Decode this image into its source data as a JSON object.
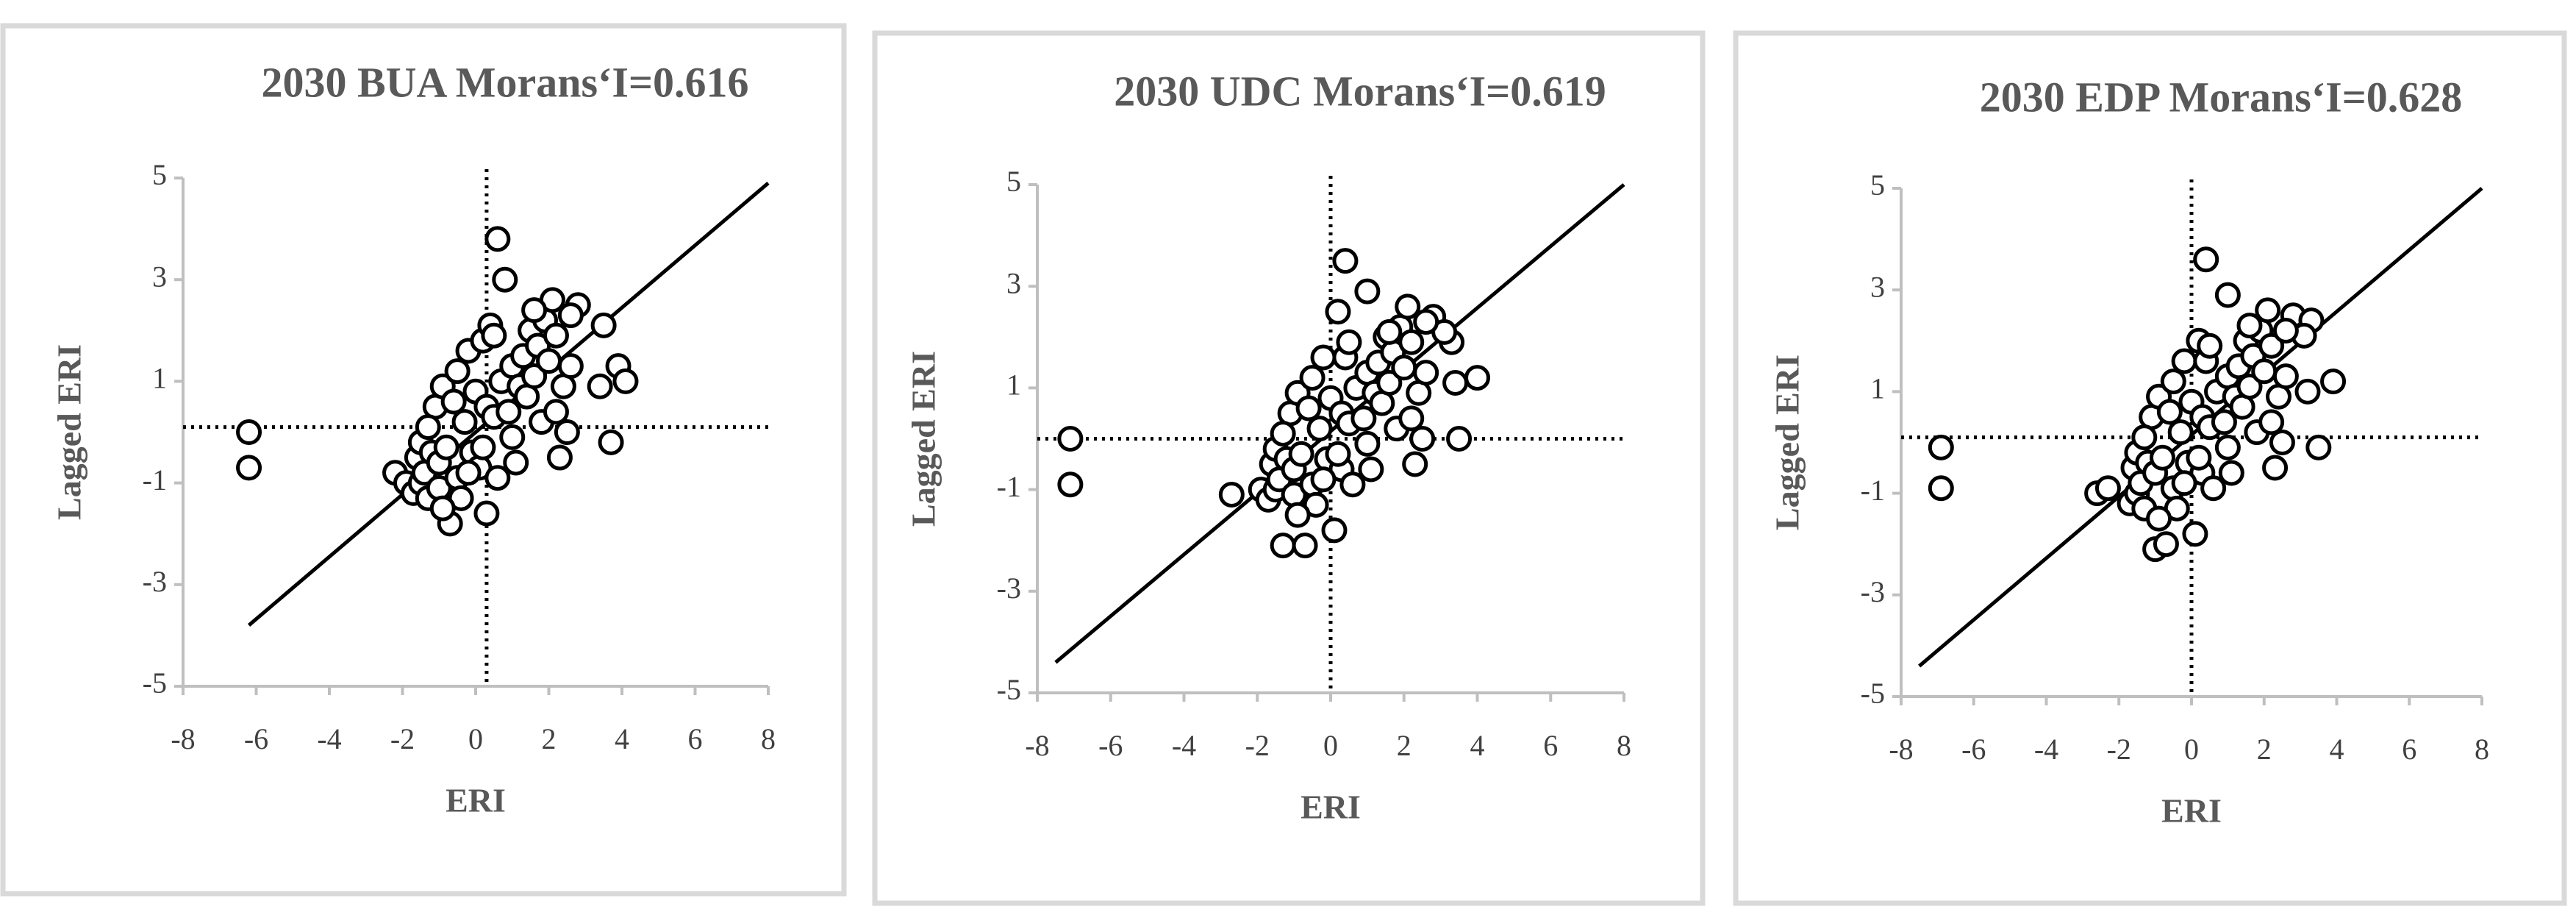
{
  "chart_data": [
    {
      "type": "scatter",
      "title": "2030 BUA  Morans‘I=0.616",
      "x_label": "ERI",
      "y_label": "Lagged ERI",
      "xlim": [
        -8,
        8
      ],
      "xticks": [
        -8,
        -6,
        -4,
        -2,
        0,
        2,
        4,
        6,
        8
      ],
      "ylim": [
        -5,
        5
      ],
      "yticks": [
        -5,
        -3,
        -1,
        1,
        3,
        5
      ],
      "x": [
        -6.2,
        -6.2,
        -2.2,
        -1.9,
        -1.7,
        -1.6,
        -1.5,
        -1.5,
        -1.4,
        -1.3,
        -1.2,
        -1.1,
        -1.0,
        -1.0,
        -0.9,
        -0.8,
        -0.7,
        -0.6,
        -0.5,
        -0.4,
        -0.3,
        -0.2,
        -0.1,
        0.0,
        0.1,
        0.2,
        0.3,
        0.3,
        0.4,
        0.5,
        0.6,
        0.6,
        0.7,
        0.8,
        0.9,
        1.0,
        1.1,
        1.2,
        1.3,
        1.4,
        1.5,
        1.6,
        1.7,
        1.8,
        1.9,
        2.0,
        2.1,
        2.2,
        2.3,
        2.4,
        2.5,
        2.6,
        2.8,
        3.4,
        3.5,
        3.7,
        3.9,
        4.1,
        -0.5,
        0.2,
        -1.3,
        -0.9,
        1.0,
        1.6,
        2.2,
        -0.2,
        0.5,
        2.6
      ],
      "values": [
        0.0,
        -0.7,
        -0.8,
        -1.0,
        -1.2,
        -0.5,
        -0.2,
        -1.0,
        -0.8,
        -1.3,
        -0.4,
        0.5,
        -1.1,
        -0.6,
        0.9,
        -0.3,
        -1.8,
        0.6,
        -0.9,
        -1.3,
        0.2,
        1.6,
        -0.4,
        0.8,
        -0.7,
        1.8,
        -1.6,
        0.5,
        2.1,
        0.3,
        3.8,
        -0.9,
        1.0,
        3.0,
        0.4,
        1.3,
        -0.6,
        0.9,
        1.5,
        0.7,
        2.0,
        1.1,
        1.7,
        0.2,
        2.2,
        1.4,
        2.6,
        1.9,
        -0.5,
        0.9,
        0.0,
        1.3,
        2.5,
        0.9,
        2.1,
        -0.2,
        1.3,
        1.0,
        1.2,
        -0.3,
        0.1,
        -1.5,
        -0.1,
        2.4,
        0.4,
        -0.8,
        1.9,
        2.3
      ],
      "fit_line": {
        "x": [
          -6.2,
          8
        ],
        "y": [
          -3.8,
          4.9
        ]
      },
      "ref_x": 0.3,
      "ref_y": 0.1
    },
    {
      "type": "scatter",
      "title": "2030 UDC  Morans‘I=0.619",
      "x_label": "ERI",
      "y_label": "Lagged ERI",
      "xlim": [
        -8,
        8
      ],
      "xticks": [
        -8,
        -6,
        -4,
        -2,
        0,
        2,
        4,
        6,
        8
      ],
      "ylim": [
        -5,
        5
      ],
      "yticks": [
        -5,
        -3,
        -1,
        1,
        3,
        5
      ],
      "x": [
        -7.1,
        -7.1,
        -2.7,
        -1.9,
        -1.7,
        -1.6,
        -1.5,
        -1.5,
        -1.4,
        -1.3,
        -1.2,
        -1.1,
        -1.0,
        -1.0,
        -0.9,
        -0.8,
        -0.7,
        -0.6,
        -0.5,
        -0.4,
        -0.3,
        -0.2,
        -0.1,
        0.0,
        0.1,
        0.2,
        0.3,
        0.3,
        0.4,
        0.5,
        0.4,
        0.6,
        0.7,
        1.0,
        0.9,
        1.0,
        1.1,
        1.2,
        1.3,
        1.4,
        1.5,
        1.6,
        1.7,
        1.8,
        1.9,
        2.0,
        2.1,
        2.2,
        2.3,
        2.4,
        2.5,
        2.6,
        2.8,
        3.3,
        3.1,
        3.5,
        4.0,
        3.4,
        -0.5,
        0.2,
        -1.3,
        -0.9,
        1.0,
        1.6,
        2.2,
        -0.2,
        0.5,
        2.6
      ],
      "values": [
        0.0,
        -0.9,
        -1.1,
        -1.0,
        -1.2,
        -0.5,
        -0.2,
        -1.0,
        -0.8,
        -2.1,
        -0.4,
        0.5,
        -1.1,
        -0.6,
        0.9,
        -0.3,
        -2.1,
        0.6,
        -0.9,
        -1.3,
        0.2,
        1.6,
        -0.4,
        0.8,
        -1.8,
        2.5,
        -0.6,
        0.5,
        1.6,
        0.3,
        3.5,
        -0.9,
        1.0,
        2.9,
        0.4,
        1.3,
        -0.6,
        0.9,
        1.5,
        0.7,
        2.0,
        1.1,
        1.7,
        0.2,
        2.2,
        1.4,
        2.6,
        1.9,
        -0.5,
        0.9,
        0.0,
        1.3,
        2.4,
        1.9,
        2.1,
        0.0,
        1.2,
        1.1,
        1.2,
        -0.3,
        0.1,
        -1.5,
        -0.1,
        2.1,
        0.4,
        -0.8,
        1.9,
        2.3
      ],
      "fit_line": {
        "x": [
          -7.5,
          8
        ],
        "y": [
          -4.4,
          5.0
        ]
      },
      "ref_x": 0,
      "ref_y": 0
    },
    {
      "type": "scatter",
      "title": "2030 EDP  Morans‘I=0.628",
      "x_label": "ERI",
      "y_label": "Lagged ERI",
      "xlim": [
        -8,
        8
      ],
      "xticks": [
        -8,
        -6,
        -4,
        -2,
        0,
        2,
        4,
        6,
        8
      ],
      "ylim": [
        -5,
        5
      ],
      "yticks": [
        -5,
        -3,
        -1,
        1,
        3,
        5
      ],
      "x": [
        -6.9,
        -6.9,
        -2.6,
        -2.3,
        -1.7,
        -1.6,
        -1.5,
        -1.5,
        -1.4,
        -1.3,
        -1.2,
        -1.1,
        -1.0,
        -1.0,
        -0.9,
        -0.8,
        -0.7,
        -0.6,
        -0.5,
        -0.4,
        -0.3,
        -0.2,
        -0.1,
        0.0,
        0.1,
        0.2,
        0.3,
        0.3,
        0.4,
        0.5,
        0.4,
        0.6,
        0.7,
        1.0,
        0.9,
        1.0,
        1.1,
        1.2,
        1.3,
        1.4,
        1.5,
        1.6,
        1.7,
        1.8,
        1.9,
        2.0,
        2.1,
        2.2,
        2.3,
        2.4,
        2.5,
        2.6,
        2.8,
        3.3,
        3.1,
        3.5,
        3.9,
        3.2,
        -0.5,
        0.2,
        -1.3,
        -0.9,
        1.0,
        1.6,
        2.2,
        -0.2,
        0.5,
        2.6
      ],
      "values": [
        -0.1,
        -0.9,
        -1.0,
        -0.9,
        -1.2,
        -0.5,
        -0.2,
        -1.0,
        -0.8,
        -1.3,
        -0.4,
        0.5,
        -2.1,
        -0.6,
        0.9,
        -0.3,
        -2.0,
        0.6,
        -0.9,
        -1.3,
        0.2,
        1.6,
        -0.4,
        0.8,
        -1.8,
        2.0,
        -0.6,
        0.5,
        1.6,
        0.3,
        3.6,
        -0.9,
        1.0,
        2.9,
        0.4,
        1.3,
        -0.6,
        0.9,
        1.5,
        0.7,
        2.0,
        1.1,
        1.7,
        0.2,
        2.2,
        1.4,
        2.6,
        1.9,
        -0.5,
        0.9,
        0.0,
        1.3,
        2.5,
        2.4,
        2.1,
        -0.1,
        1.2,
        1.0,
        1.2,
        -0.3,
        0.1,
        -1.5,
        -0.1,
        2.3,
        0.4,
        -0.8,
        1.9,
        2.2
      ],
      "fit_line": {
        "x": [
          -7.5,
          8
        ],
        "y": [
          -4.4,
          5.0
        ]
      },
      "ref_x": 0,
      "ref_y": 0.1
    }
  ]
}
